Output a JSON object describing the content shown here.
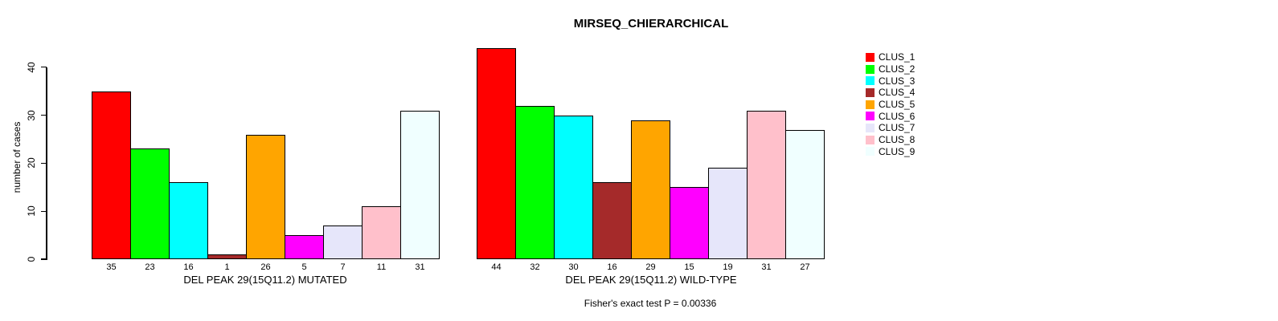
{
  "title": "MIRSEQ_CHIERARCHICAL",
  "footer": "Fisher's exact test P = 0.00336",
  "y_axis": {
    "label": "number of cases",
    "tick_labels": [
      "0",
      "10",
      "20",
      "30",
      "40"
    ]
  },
  "legend": {
    "position": "topright",
    "items": [
      {
        "label": "CLUS_1",
        "color": "#FF0000"
      },
      {
        "label": "CLUS_2",
        "color": "#00FF00"
      },
      {
        "label": "CLUS_3",
        "color": "#00FFFF"
      },
      {
        "label": "CLUS_4",
        "color": "#A52A2A"
      },
      {
        "label": "CLUS_5",
        "color": "#FFA500"
      },
      {
        "label": "CLUS_6",
        "color": "#FF00FF"
      },
      {
        "label": "CLUS_7",
        "color": "#E6E6FA"
      },
      {
        "label": "CLUS_8",
        "color": "#FFC0CB"
      },
      {
        "label": "CLUS_9",
        "color": "#F0FFFF"
      }
    ]
  },
  "chart_data": [
    {
      "type": "bar",
      "title": "MIRSEQ_CHIERARCHICAL",
      "xlabel": "DEL PEAK 29(15Q11.2) MUTATED",
      "ylabel": "number of cases",
      "categories": [
        "CLUS_1",
        "CLUS_2",
        "CLUS_3",
        "CLUS_4",
        "CLUS_5",
        "CLUS_6",
        "CLUS_7",
        "CLUS_8",
        "CLUS_9"
      ],
      "values": [
        35,
        23,
        16,
        1,
        26,
        5,
        7,
        11,
        31
      ],
      "bar_labels": [
        "35",
        "23",
        "16",
        "1",
        "26",
        "5",
        "7",
        "11",
        "31"
      ],
      "colors": [
        "#FF0000",
        "#00FF00",
        "#00FFFF",
        "#A52A2A",
        "#FFA500",
        "#FF00FF",
        "#E6E6FA",
        "#FFC0CB",
        "#F0FFFF"
      ],
      "yticks": [
        0,
        10,
        20,
        30,
        40
      ],
      "ylim": [
        0,
        40
      ],
      "grid": false
    },
    {
      "type": "bar",
      "title": "",
      "xlabel": "DEL PEAK 29(15Q11.2) WILD-TYPE",
      "ylabel": "",
      "categories": [
        "CLUS_1",
        "CLUS_2",
        "CLUS_3",
        "CLUS_4",
        "CLUS_5",
        "CLUS_6",
        "CLUS_7",
        "CLUS_8",
        "CLUS_9"
      ],
      "values": [
        44,
        32,
        30,
        16,
        29,
        15,
        19,
        31,
        27
      ],
      "bar_labels": [
        "44",
        "32",
        "30",
        "16",
        "29",
        "15",
        "19",
        "31",
        "27"
      ],
      "colors": [
        "#FF0000",
        "#00FF00",
        "#00FFFF",
        "#A52A2A",
        "#FFA500",
        "#FF00FF",
        "#E6E6FA",
        "#FFC0CB",
        "#F0FFFF"
      ],
      "yticks": [],
      "ylim": [
        0,
        44
      ],
      "grid": false
    }
  ]
}
